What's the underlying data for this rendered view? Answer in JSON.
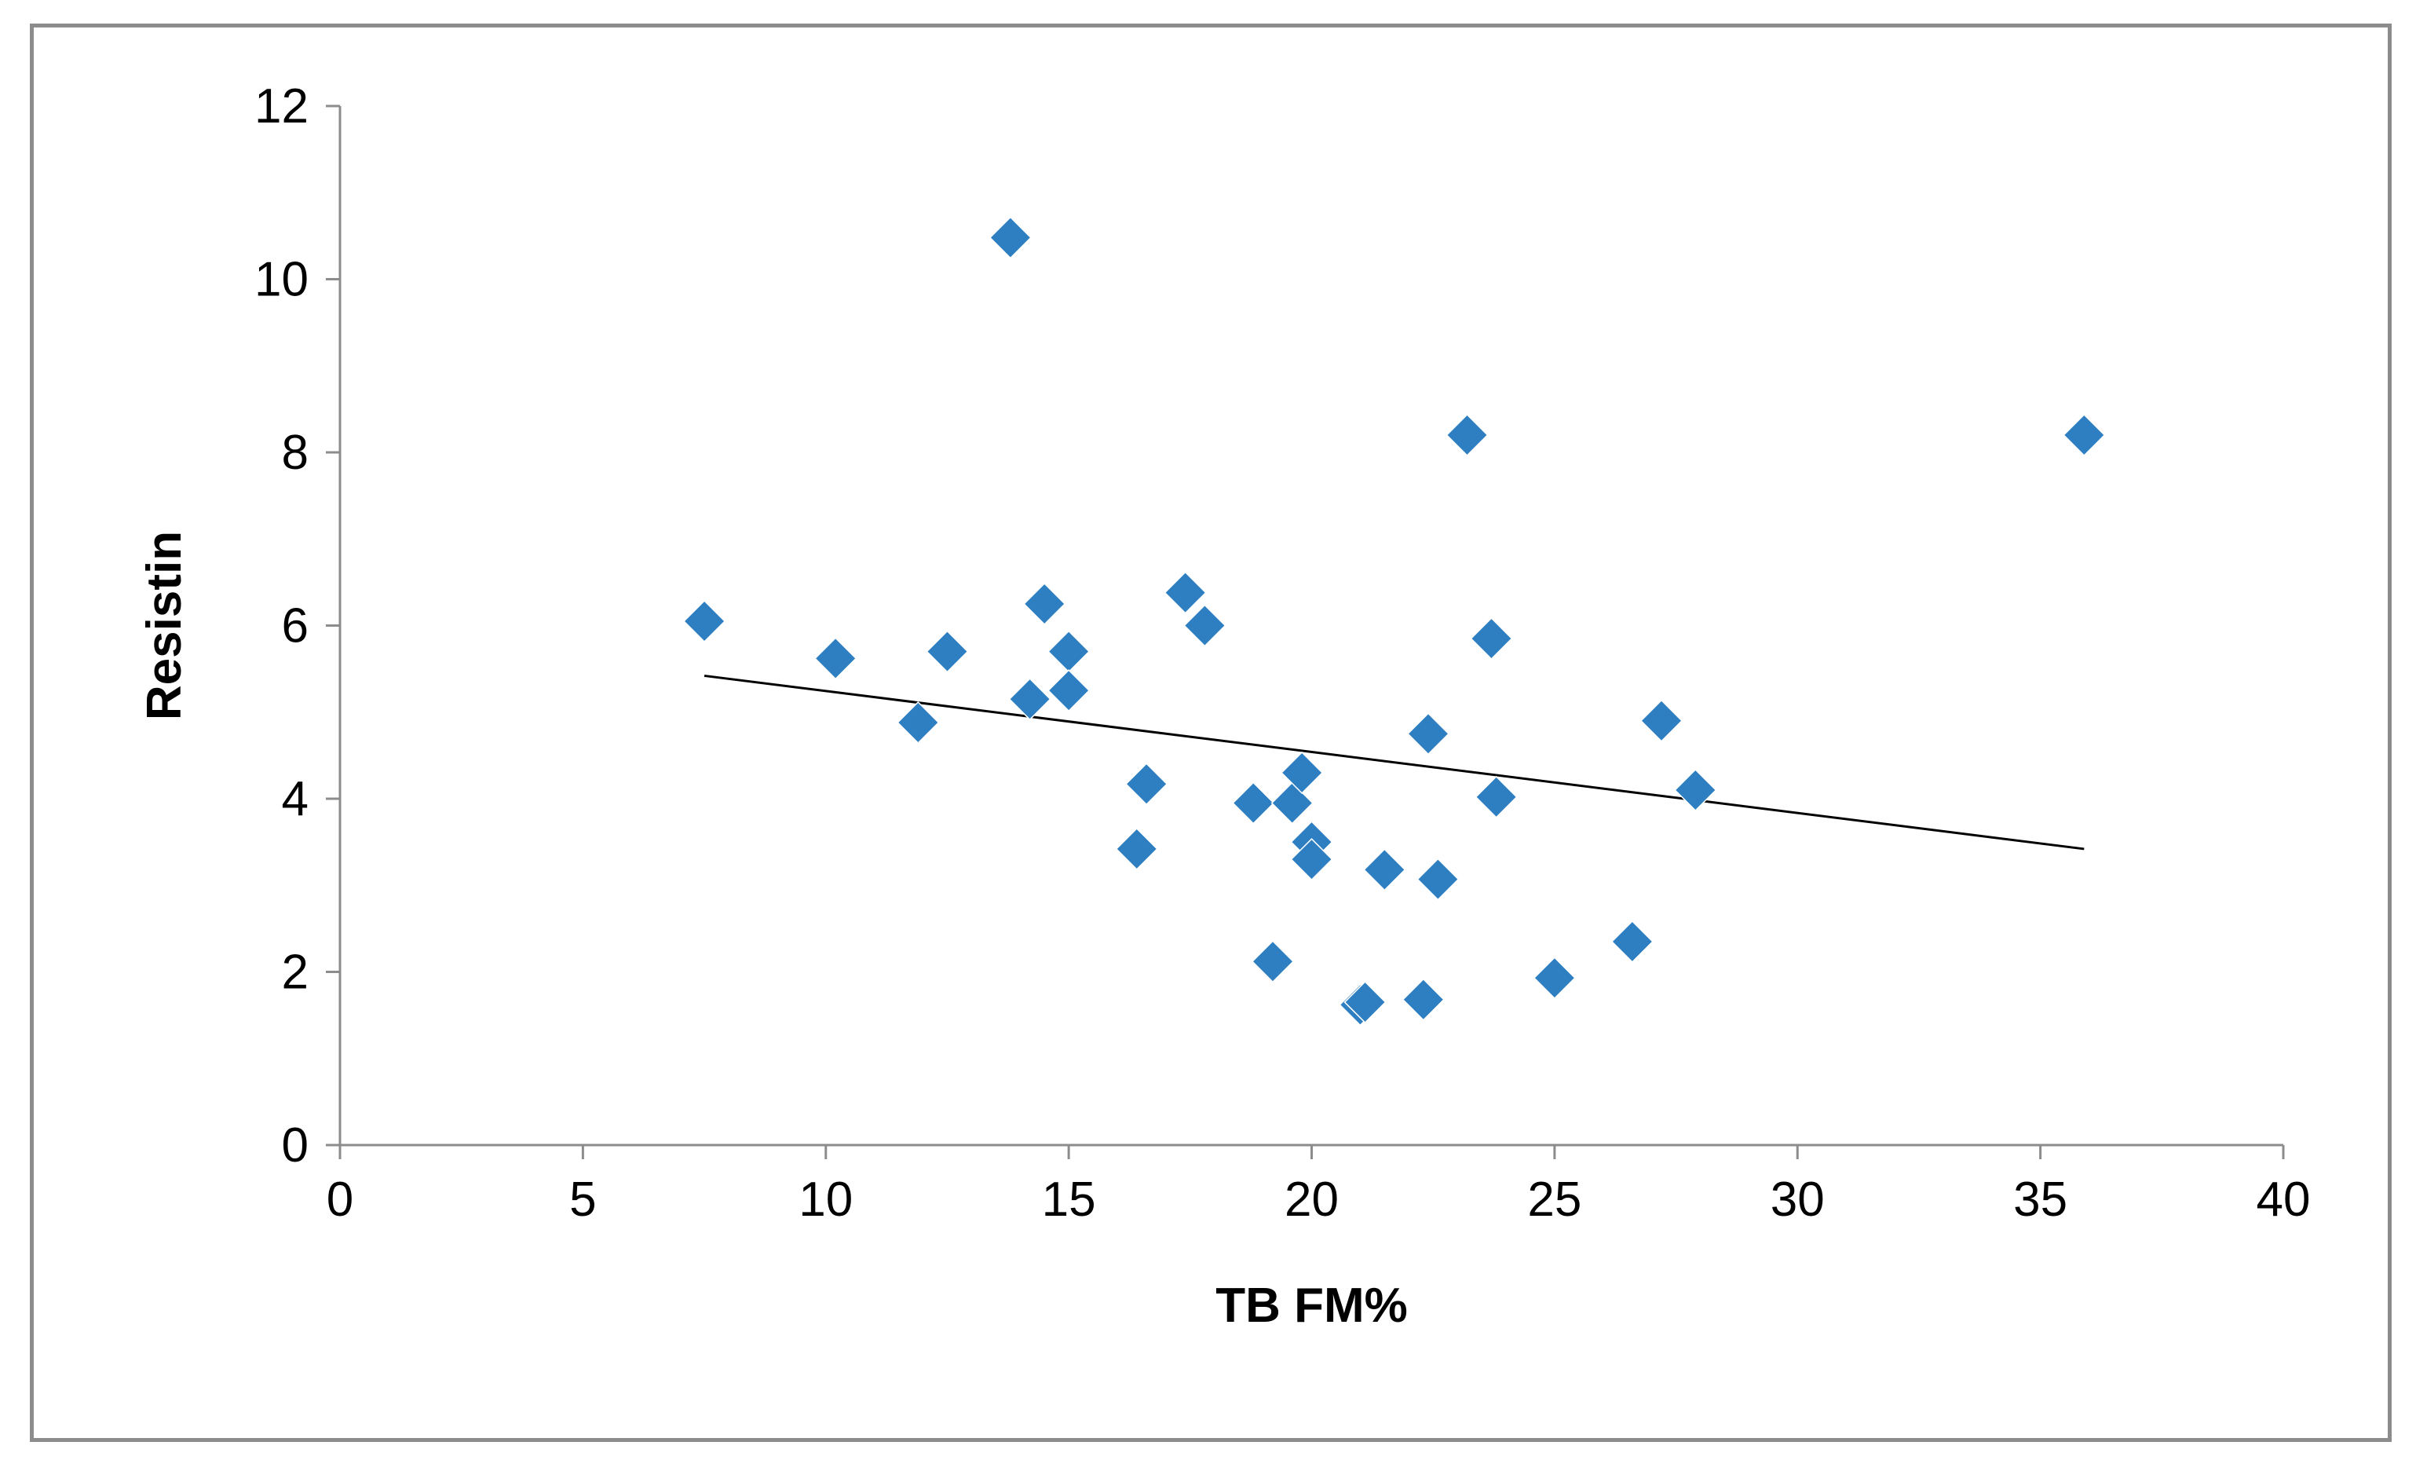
{
  "chart_data": {
    "type": "scatter",
    "title": "",
    "xlabel": "TB FM%",
    "ylabel": "Resistin",
    "xlim": [
      0,
      40
    ],
    "ylim": [
      0,
      12
    ],
    "xticks": [
      0,
      5,
      10,
      15,
      20,
      25,
      30,
      35,
      40
    ],
    "yticks": [
      0,
      2,
      4,
      6,
      8,
      10,
      12
    ],
    "grid": false,
    "legend": "none",
    "colors": {
      "marker": "#2E7FC2",
      "trendline": "#000000",
      "axis": "#8c8c8c"
    },
    "series": [
      {
        "name": "Resistin",
        "points": [
          {
            "x": 7.5,
            "y": 6.05
          },
          {
            "x": 10.2,
            "y": 5.62
          },
          {
            "x": 11.9,
            "y": 4.88
          },
          {
            "x": 12.5,
            "y": 5.7
          },
          {
            "x": 13.8,
            "y": 10.48
          },
          {
            "x": 14.2,
            "y": 5.15
          },
          {
            "x": 14.5,
            "y": 6.25
          },
          {
            "x": 15.0,
            "y": 5.7
          },
          {
            "x": 15.0,
            "y": 5.25
          },
          {
            "x": 16.4,
            "y": 3.42
          },
          {
            "x": 16.6,
            "y": 4.17
          },
          {
            "x": 17.4,
            "y": 6.38
          },
          {
            "x": 17.8,
            "y": 6.0
          },
          {
            "x": 18.8,
            "y": 3.95
          },
          {
            "x": 19.2,
            "y": 2.12
          },
          {
            "x": 19.6,
            "y": 3.95
          },
          {
            "x": 19.8,
            "y": 4.3
          },
          {
            "x": 20.0,
            "y": 3.5
          },
          {
            "x": 20.0,
            "y": 3.3
          },
          {
            "x": 21.0,
            "y": 1.62
          },
          {
            "x": 21.1,
            "y": 1.65
          },
          {
            "x": 21.5,
            "y": 3.18
          },
          {
            "x": 22.3,
            "y": 1.68
          },
          {
            "x": 22.4,
            "y": 4.75
          },
          {
            "x": 22.6,
            "y": 3.07
          },
          {
            "x": 23.2,
            "y": 8.2
          },
          {
            "x": 23.7,
            "y": 5.85
          },
          {
            "x": 23.8,
            "y": 4.02
          },
          {
            "x": 25.0,
            "y": 1.93
          },
          {
            "x": 26.6,
            "y": 2.35
          },
          {
            "x": 27.2,
            "y": 4.9
          },
          {
            "x": 27.9,
            "y": 4.1
          },
          {
            "x": 35.9,
            "y": 8.2
          }
        ]
      }
    ],
    "trendline": {
      "type": "linear",
      "x_start": 7.5,
      "y_start": 5.42,
      "x_end": 35.9,
      "y_end": 3.42
    }
  }
}
